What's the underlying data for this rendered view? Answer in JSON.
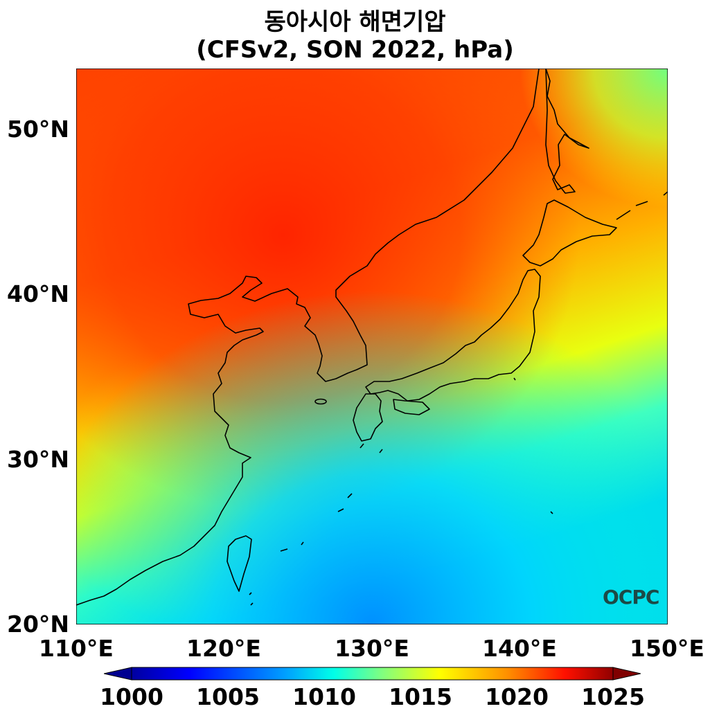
{
  "title": "동아시아 해면기압",
  "subtitle": "(CFSv2, SON 2022, hPa)",
  "logo": "OCPC",
  "lat_labels": [
    "50°N",
    "40°N",
    "30°N",
    "20°N"
  ],
  "lon_labels": [
    "110°E",
    "120°E",
    "130°E",
    "140°E",
    "150°E"
  ],
  "colorbar": {
    "ticks": [
      "1000",
      "1005",
      "1010",
      "1015",
      "1020",
      "1025"
    ],
    "range": [
      1000,
      1025
    ],
    "extend": "both",
    "colormap": "jet"
  },
  "map_extent": {
    "lon": [
      110,
      150
    ],
    "lat": [
      20,
      53
    ]
  },
  "colors": {
    "high": "#ff2a00",
    "low": "#0077ff",
    "coastline": "#000000",
    "logo": "#1c4a46"
  }
}
